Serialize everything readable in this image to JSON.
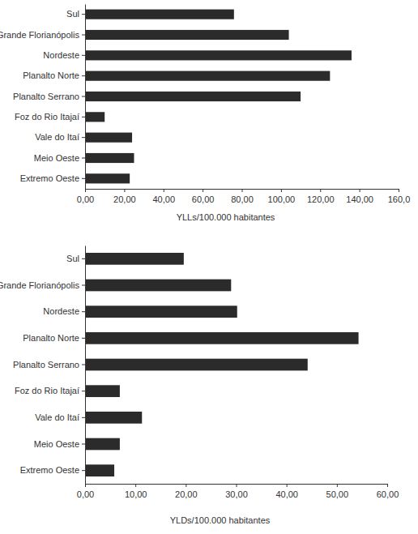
{
  "chart_data": [
    {
      "type": "bar",
      "orientation": "horizontal",
      "categories": [
        "Sul",
        "Grande Florianópolis",
        "Nordeste",
        "Planalto Norte",
        "Planalto Serrano",
        "Foz do Rio Itajaí",
        "Vale do Itaí",
        "Meio Oeste",
        "Extremo Oeste"
      ],
      "values": [
        76,
        104,
        136,
        125,
        110,
        10,
        24,
        25,
        22.8
      ],
      "color": "#2b2b2b",
      "x_label": "YLLs/100.000 habitantes",
      "xlim": [
        0,
        160
      ],
      "xticks": [
        {
          "value": 0,
          "label": "0,00"
        },
        {
          "value": 20,
          "label": "20,00"
        },
        {
          "value": 40,
          "label": "40,00"
        },
        {
          "value": 60,
          "label": "60,00"
        },
        {
          "value": 80,
          "label": "80,00"
        },
        {
          "value": 100,
          "label": "100,00"
        },
        {
          "value": 120,
          "label": "120,00"
        },
        {
          "value": 140,
          "label": "140,00"
        },
        {
          "value": 160,
          "label": "160,0"
        }
      ],
      "grid": false
    },
    {
      "type": "bar",
      "orientation": "horizontal",
      "categories": [
        "Sul",
        "Grande Florianópolis",
        "Nordeste",
        "Planalto Norte",
        "Planalto Serrano",
        "Foz do Rio Itajaí",
        "Vale do Itaí",
        "Meio Oeste",
        "Extremo Oeste"
      ],
      "values": [
        19.6,
        29,
        30.2,
        54.3,
        44.2,
        6.9,
        11.3,
        6.9,
        5.8
      ],
      "color": "#2b2b2b",
      "x_label": "YLDs/100.000 habitantes",
      "xlim": [
        0,
        60
      ],
      "xticks": [
        {
          "value": 0,
          "label": "0,00"
        },
        {
          "value": 10,
          "label": "10,00"
        },
        {
          "value": 20,
          "label": "20,00"
        },
        {
          "value": 30,
          "label": "30,00"
        },
        {
          "value": 40,
          "label": "40,00"
        },
        {
          "value": 50,
          "label": "50,00"
        },
        {
          "value": 60,
          "label": "60,00"
        }
      ],
      "grid": false
    }
  ]
}
